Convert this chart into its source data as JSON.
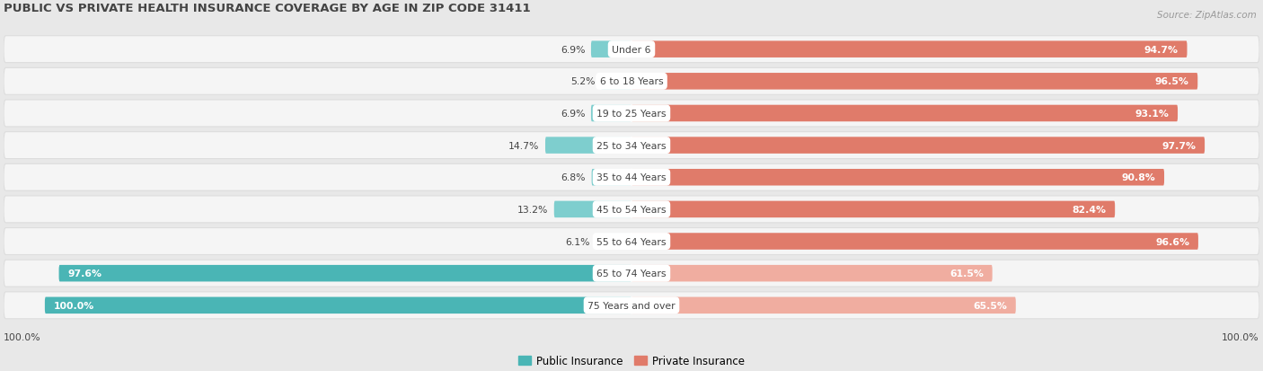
{
  "title": "PUBLIC VS PRIVATE HEALTH INSURANCE COVERAGE BY AGE IN ZIP CODE 31411",
  "source": "Source: ZipAtlas.com",
  "categories": [
    "Under 6",
    "6 to 18 Years",
    "19 to 25 Years",
    "25 to 34 Years",
    "35 to 44 Years",
    "45 to 54 Years",
    "55 to 64 Years",
    "65 to 74 Years",
    "75 Years and over"
  ],
  "public_values": [
    6.9,
    5.2,
    6.9,
    14.7,
    6.8,
    13.2,
    6.1,
    97.6,
    100.0
  ],
  "private_values": [
    94.7,
    96.5,
    93.1,
    97.7,
    90.8,
    82.4,
    96.6,
    61.5,
    65.5
  ],
  "public_color_strong": "#4ab5b5",
  "public_color_weak": "#7ecece",
  "private_color_strong": "#e07b6a",
  "private_color_weak": "#f0ada0",
  "bg_color": "#e8e8e8",
  "row_bg_color": "#f5f5f5",
  "row_border_color": "#dddddd",
  "title_color": "#444444",
  "source_color": "#999999",
  "label_dark": "#444444",
  "label_white": "#ffffff",
  "legend_labels": [
    "Public Insurance",
    "Private Insurance"
  ],
  "bottom_labels": [
    "100.0%",
    "100.0%"
  ]
}
